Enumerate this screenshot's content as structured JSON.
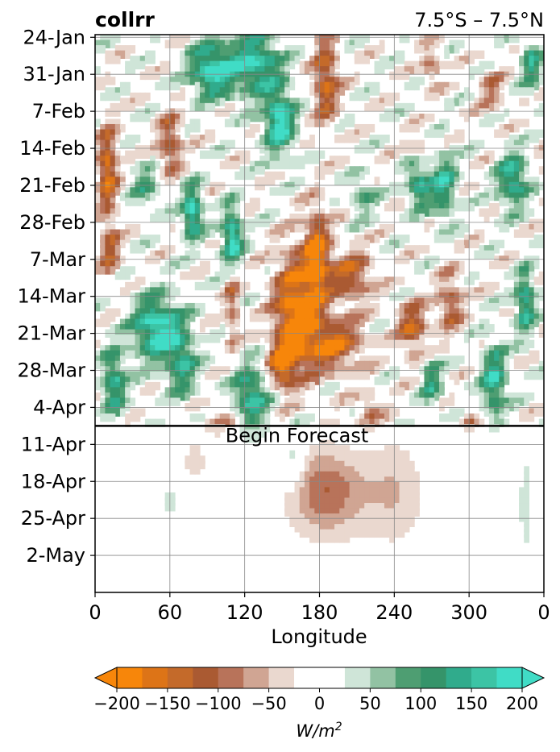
{
  "chart_data": {
    "type": "heatmap",
    "title_left": "collrr",
    "title_right": "7.5°S – 7.5°N",
    "xlabel": "Longitude",
    "x_ticks": [
      "0",
      "60",
      "120",
      "180",
      "240",
      "300",
      "0"
    ],
    "x_tick_values": [
      0,
      60,
      120,
      180,
      240,
      300,
      360
    ],
    "xlim": [
      0,
      360
    ],
    "y_ticks": [
      "24-Jan",
      "31-Jan",
      "7-Feb",
      "14-Feb",
      "21-Feb",
      "28-Feb",
      "7-Mar",
      "14-Mar",
      "21-Mar",
      "28-Mar",
      "4-Apr",
      "11-Apr",
      "18-Apr",
      "25-Apr",
      "2-May"
    ],
    "ylim_days": [
      0,
      105
    ],
    "y_tick_days": [
      0,
      7,
      14,
      21,
      28,
      35,
      42,
      49,
      56,
      63,
      70,
      77,
      84,
      91,
      98
    ],
    "forecast_start_day": 73.5,
    "forecast_label": "Begin Forecast",
    "grid": true,
    "colorbar": {
      "levels": [
        -200,
        -175,
        -150,
        -125,
        -100,
        -75,
        -50,
        -25,
        25,
        50,
        75,
        100,
        125,
        150,
        175,
        200
      ],
      "tick_values": [
        -200,
        -150,
        -100,
        -50,
        0,
        50,
        100,
        150,
        200
      ],
      "tick_labels": [
        "−200",
        "−150",
        "−100",
        "−50",
        "0",
        "50",
        "100",
        "150",
        "200"
      ],
      "colors": [
        "#f7860a",
        "#dd7417",
        "#c46a2a",
        "#aa5a32",
        "#b8735a",
        "#d0a593",
        "#ead8cf",
        "#ffffff",
        "#cfe5d8",
        "#92c2a3",
        "#4e9e72",
        "#35946a",
        "#30ab8c",
        "#3cc4a5",
        "#40dcc6"
      ],
      "extend_low": "#f7860a",
      "extend_high": "#40dcc6",
      "unit_label": "W/m²"
    },
    "anomalies": [
      {
        "lon": 160,
        "day": 52,
        "a": 17,
        "b": 11,
        "v": -200
      },
      {
        "lon": 178,
        "day": 42,
        "a": 10,
        "b": 9,
        "v": -190
      },
      {
        "lon": 190,
        "day": 58,
        "a": 25,
        "b": 5,
        "v": -160
      },
      {
        "lon": 205,
        "day": 45,
        "a": 18,
        "b": 5,
        "v": -130
      },
      {
        "lon": 150,
        "day": 62,
        "a": 10,
        "b": 4,
        "v": -170
      },
      {
        "lon": 10,
        "day": 25,
        "a": 8,
        "b": 8,
        "v": -170
      },
      {
        "lon": 12,
        "day": 40,
        "a": 8,
        "b": 5,
        "v": -110
      },
      {
        "lon": 60,
        "day": 20,
        "a": 10,
        "b": 6,
        "v": -120
      },
      {
        "lon": 185,
        "day": 8,
        "a": 10,
        "b": 8,
        "v": -150
      },
      {
        "lon": 260,
        "day": 22,
        "a": 9,
        "b": 4,
        "v": -80
      },
      {
        "lon": 255,
        "day": 55,
        "a": 12,
        "b": 5,
        "v": -140
      },
      {
        "lon": 285,
        "day": 50,
        "a": 10,
        "b": 6,
        "v": -110
      },
      {
        "lon": 318,
        "day": 10,
        "a": 10,
        "b": 4,
        "v": -80
      },
      {
        "lon": 270,
        "day": 5,
        "a": 8,
        "b": 4,
        "v": -90
      },
      {
        "lon": 110,
        "day": 50,
        "a": 6,
        "b": 8,
        "v": -100
      },
      {
        "lon": 100,
        "day": 72,
        "a": 15,
        "b": 3,
        "v": -60
      },
      {
        "lon": 220,
        "day": 70,
        "a": 10,
        "b": 3,
        "v": -80
      },
      {
        "lon": 300,
        "day": 72,
        "a": 6,
        "b": 3,
        "v": -60
      },
      {
        "lon": 94,
        "day": 6,
        "a": 18,
        "b": 5,
        "v": 200
      },
      {
        "lon": 130,
        "day": 5,
        "a": 20,
        "b": 6,
        "v": 170
      },
      {
        "lon": 148,
        "day": 16,
        "a": 12,
        "b": 6,
        "v": 200
      },
      {
        "lon": 78,
        "day": 33,
        "a": 8,
        "b": 5,
        "v": 200
      },
      {
        "lon": 110,
        "day": 38,
        "a": 8,
        "b": 6,
        "v": 200
      },
      {
        "lon": 50,
        "day": 55,
        "a": 20,
        "b": 6,
        "v": 200
      },
      {
        "lon": 125,
        "day": 68,
        "a": 15,
        "b": 6,
        "v": 160
      },
      {
        "lon": 70,
        "day": 62,
        "a": 12,
        "b": 6,
        "v": 130
      },
      {
        "lon": 15,
        "day": 65,
        "a": 10,
        "b": 6,
        "v": 150
      },
      {
        "lon": 260,
        "day": 27,
        "a": 10,
        "b": 5,
        "v": 160
      },
      {
        "lon": 280,
        "day": 28,
        "a": 10,
        "b": 6,
        "v": 150
      },
      {
        "lon": 335,
        "day": 27,
        "a": 12,
        "b": 5,
        "v": 170
      },
      {
        "lon": 345,
        "day": 50,
        "a": 8,
        "b": 6,
        "v": 160
      },
      {
        "lon": 320,
        "day": 65,
        "a": 10,
        "b": 7,
        "v": 160
      },
      {
        "lon": 270,
        "day": 65,
        "a": 8,
        "b": 5,
        "v": 120
      },
      {
        "lon": 40,
        "day": 28,
        "a": 12,
        "b": 4,
        "v": 90
      },
      {
        "lon": 215,
        "day": 30,
        "a": 10,
        "b": 4,
        "v": 90
      },
      {
        "lon": 350,
        "day": 5,
        "a": 8,
        "b": 5,
        "v": 130
      },
      {
        "lon": 185,
        "day": 86,
        "a": 30,
        "b": 8,
        "v": -100
      },
      {
        "lon": 240,
        "day": 86,
        "a": 25,
        "b": 10,
        "v": -50
      },
      {
        "lon": 80,
        "day": 80,
        "a": 8,
        "b": 3,
        "v": -50
      },
      {
        "lon": 160,
        "day": 80,
        "a": 8,
        "b": 6,
        "v": 50
      },
      {
        "lon": 345,
        "day": 88,
        "a": 5,
        "b": 10,
        "v": 40
      },
      {
        "lon": 60,
        "day": 88,
        "a": 4,
        "b": 5,
        "v": 35
      }
    ]
  }
}
